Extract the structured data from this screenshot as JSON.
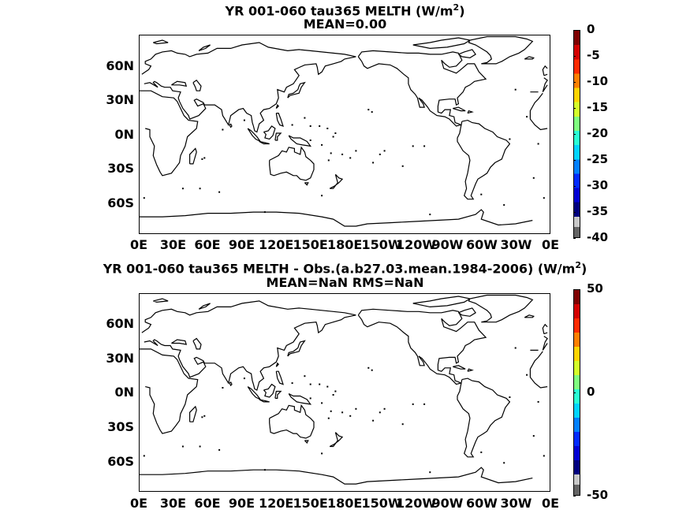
{
  "panels": [
    {
      "id": "top",
      "title_prefix": "YR 001-060 tau365  MELTH (W/m",
      "title_sup": "2",
      "title_suffix": ")",
      "subtitle": "MEAN=0.00",
      "lat_labels": [
        "60N",
        "30N",
        "0N",
        "30S",
        "60S"
      ],
      "lon_labels": [
        "0E",
        "30E",
        "60E",
        "90E",
        "120E",
        "150E",
        "180E",
        "150W",
        "120W",
        "90W",
        "60W",
        "30W",
        "0E"
      ],
      "colorbar_labels": [
        "0",
        "-5",
        "-10",
        "-15",
        "-20",
        "-25",
        "-30",
        "-35",
        "-40"
      ],
      "colorbar_range": [
        -40,
        0
      ]
    },
    {
      "id": "bottom",
      "title_prefix": "YR 001-060 tau365 MELTH - Obs.(a.b27.03.mean.1984-2006) (W/m",
      "title_sup": "2",
      "title_suffix": ")",
      "subtitle": "MEAN=NaN RMS=NaN",
      "lat_labels": [
        "60N",
        "30N",
        "0N",
        "30S",
        "60S"
      ],
      "lon_labels": [
        "0E",
        "30E",
        "60E",
        "90E",
        "120E",
        "150E",
        "180E",
        "150W",
        "120W",
        "90W",
        "60W",
        "30W",
        "0E"
      ],
      "colorbar_labels": [
        "50",
        "0",
        "-50"
      ],
      "colorbar_range": [
        -50,
        50
      ]
    }
  ],
  "colors": {
    "colormap": [
      "#7f0000",
      "#d40000",
      "#ff2a00",
      "#ff7f00",
      "#ffd400",
      "#d4ff2a",
      "#7fff7f",
      "#2affd4",
      "#00d4ff",
      "#007fff",
      "#002aff",
      "#0000d4",
      "#00007f"
    ],
    "colorbar_below_range": [
      "#c8c8c8",
      "#646464"
    ],
    "coastline": "#000000"
  }
}
